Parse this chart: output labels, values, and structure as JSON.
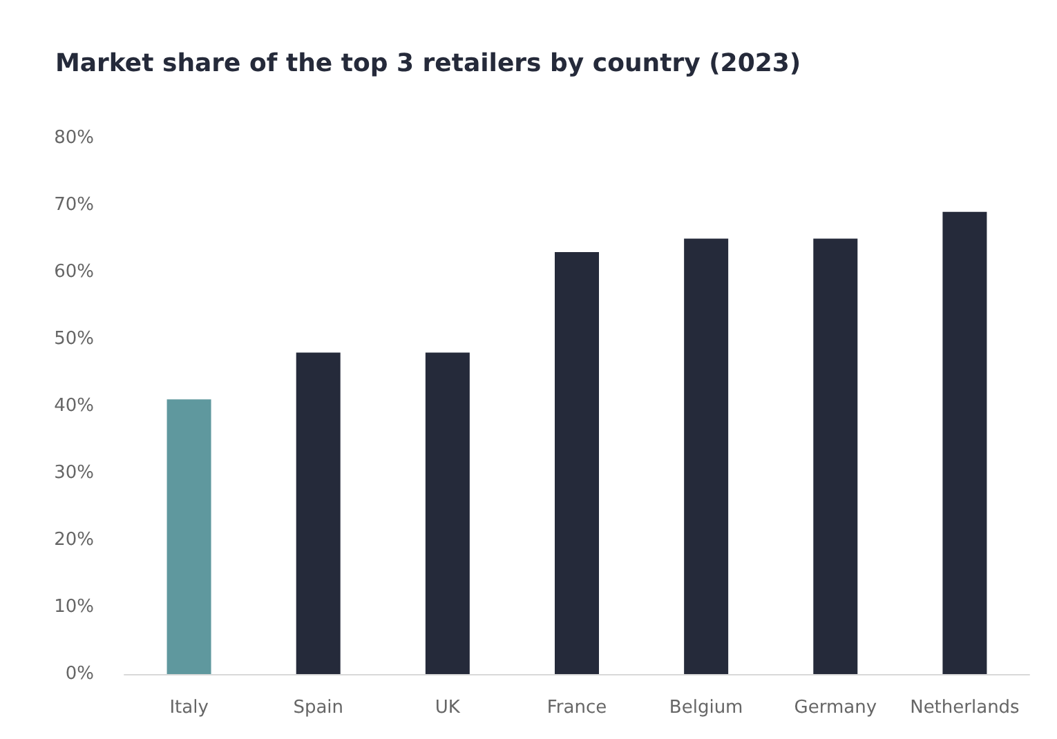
{
  "chart_data": {
    "type": "bar",
    "title": "Market share of the top 3 retailers by country (2023)",
    "categories": [
      "Italy",
      "Spain",
      "UK",
      "France",
      "Belgium",
      "Germany",
      "Netherlands"
    ],
    "values": [
      41,
      48,
      48,
      63,
      65,
      65,
      69
    ],
    "colors": [
      "#5f989e",
      "#252a3a",
      "#252a3a",
      "#252a3a",
      "#252a3a",
      "#252a3a",
      "#252a3a"
    ],
    "ylim": [
      0,
      80
    ],
    "yticks": [
      {
        "value": 0,
        "label": "0%"
      },
      {
        "value": 10,
        "label": "10%"
      },
      {
        "value": 20,
        "label": "20%"
      },
      {
        "value": 30,
        "label": "30%"
      },
      {
        "value": 40,
        "label": "40%"
      },
      {
        "value": 50,
        "label": "50%"
      },
      {
        "value": 60,
        "label": "60%"
      },
      {
        "value": 70,
        "label": "70%"
      },
      {
        "value": 80,
        "label": "80%"
      }
    ],
    "grid": false
  }
}
